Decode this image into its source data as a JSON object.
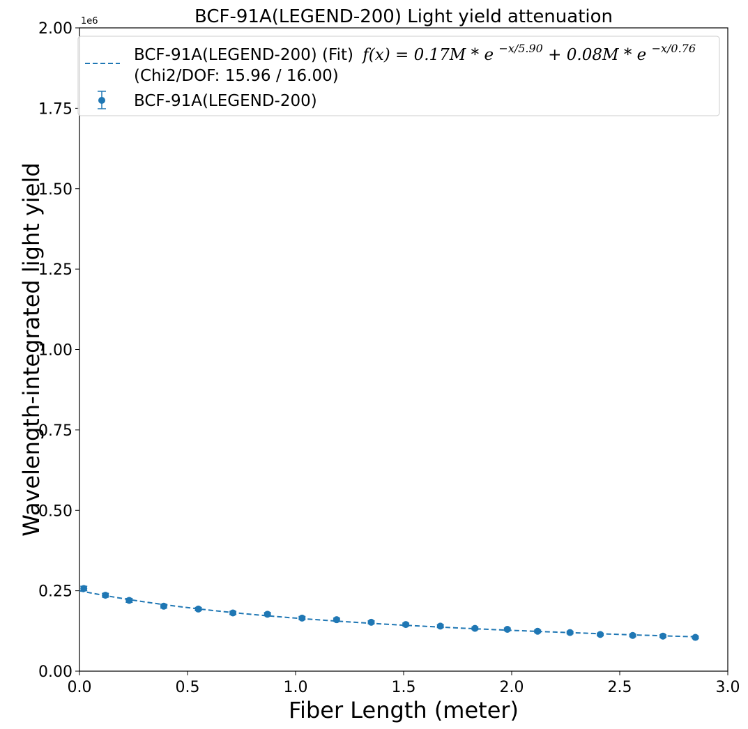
{
  "chart_data": {
    "type": "scatter",
    "title": "BCF-91A(LEGEND-200) Light yield attenuation",
    "xlabel": "Fiber Length (meter)",
    "ylabel": "Wavelength-integrated light yield",
    "y_offset_label": "1e6",
    "y_scale": 1000000,
    "xlim": [
      0.0,
      3.0
    ],
    "ylim": [
      0.0,
      2000000
    ],
    "xticks": [
      0.0,
      0.5,
      1.0,
      1.5,
      2.0,
      2.5,
      3.0
    ],
    "xtick_labels": [
      "0.0",
      "0.5",
      "1.0",
      "1.5",
      "2.0",
      "2.5",
      "3.0"
    ],
    "yticks": [
      0,
      250000,
      500000,
      750000,
      1000000,
      1250000,
      1500000,
      1750000,
      2000000
    ],
    "ytick_labels": [
      "0.00",
      "0.25",
      "0.50",
      "0.75",
      "1.00",
      "1.25",
      "1.50",
      "1.75",
      "2.00"
    ],
    "grid": false,
    "legend_position": "top",
    "color": "#1f77b4",
    "fit": {
      "legend_label": "BCF-91A(LEGEND-200) (Fit)",
      "formula_prefix": "f(x) = 0.17M * e",
      "formula_exp1": "−x/5.90",
      "formula_mid": " + 0.08M * e",
      "formula_exp2": "−x/0.76",
      "chi2_label": " (Chi2/DOF: 15.96 / 16.00)",
      "A1": 170000,
      "L1": 5.9,
      "A2": 80000,
      "L2": 0.76,
      "x_range": [
        0.0,
        2.85
      ]
    },
    "series": [
      {
        "name": "BCF-91A(LEGEND-200)",
        "x": [
          0.02,
          0.12,
          0.23,
          0.39,
          0.55,
          0.71,
          0.87,
          1.03,
          1.19,
          1.35,
          1.51,
          1.67,
          1.83,
          1.98,
          2.12,
          2.27,
          2.41,
          2.56,
          2.7,
          2.85
        ],
        "y": [
          257000,
          236000,
          220000,
          202000,
          193000,
          181000,
          177000,
          165000,
          160000,
          152000,
          145000,
          140000,
          133000,
          130000,
          124000,
          120000,
          114000,
          111000,
          109000,
          105000
        ],
        "yerr": [
          7000,
          6000,
          6000,
          6000,
          5000,
          5000,
          5000,
          5000,
          5000,
          4500,
          4500,
          4500,
          4000,
          4000,
          4000,
          4000,
          4000,
          4000,
          4000,
          4000
        ]
      }
    ]
  }
}
